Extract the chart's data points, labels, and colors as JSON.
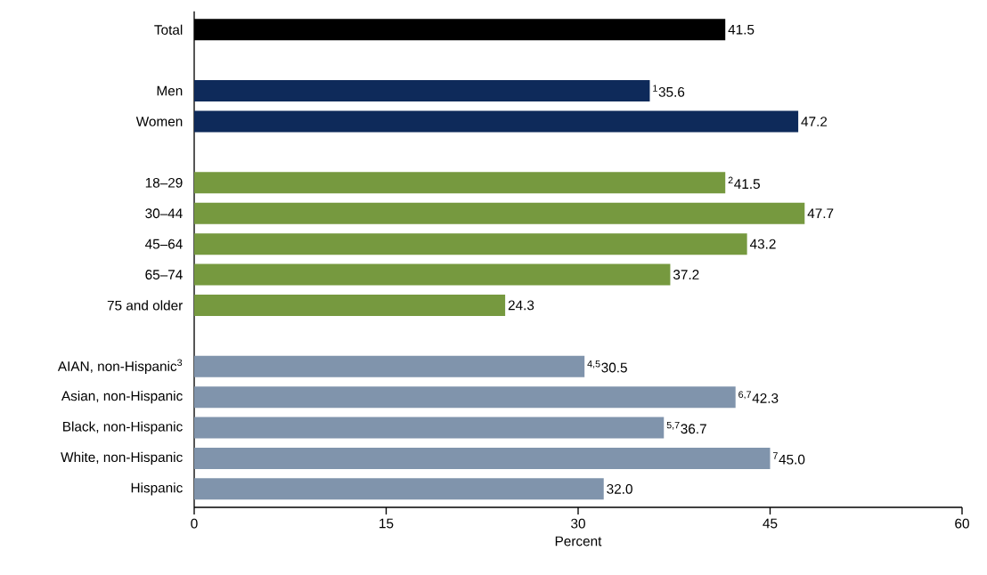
{
  "chart_data": {
    "type": "bar",
    "orientation": "horizontal",
    "xlabel": "Percent",
    "categories": [
      "Total",
      null,
      "Men",
      "Women",
      null,
      "18–29",
      "30–44",
      "45–64",
      "65–74",
      "75 and older",
      null,
      "AIAN, non-Hispanic$^{3}$",
      "Asian, non-Hispanic",
      "Black, non-Hispanic",
      "White, non-Hispanic",
      "Hispanic"
    ],
    "values": [
      41.5,
      null,
      35.6,
      47.2,
      null,
      41.5,
      47.7,
      43.2,
      37.2,
      24.3,
      null,
      30.5,
      42.3,
      36.7,
      45.0,
      32.0
    ],
    "value_labels": [
      "41.5",
      null,
      "$^{1}$35.6",
      "47.2",
      null,
      "$^{2}$41.5",
      "47.7",
      "43.2",
      "37.2",
      "24.3",
      null,
      "$^{4,5}$30.5",
      "$^{6,7}$42.3",
      "$^{5,7}$36.7",
      "$^{7}$45.0",
      "32.0"
    ],
    "colors": [
      "#000000",
      null,
      "#0e2a5a",
      "#0e2a5a",
      null,
      "#76993f",
      "#76993f",
      "#76993f",
      "#76993f",
      "#76993f",
      null,
      "#8094ac",
      "#8094ac",
      "#8094ac",
      "#8094ac",
      "#8094ac"
    ],
    "xlim": [
      0,
      60
    ],
    "xticks": [
      0,
      15,
      30,
      45,
      60
    ]
  }
}
